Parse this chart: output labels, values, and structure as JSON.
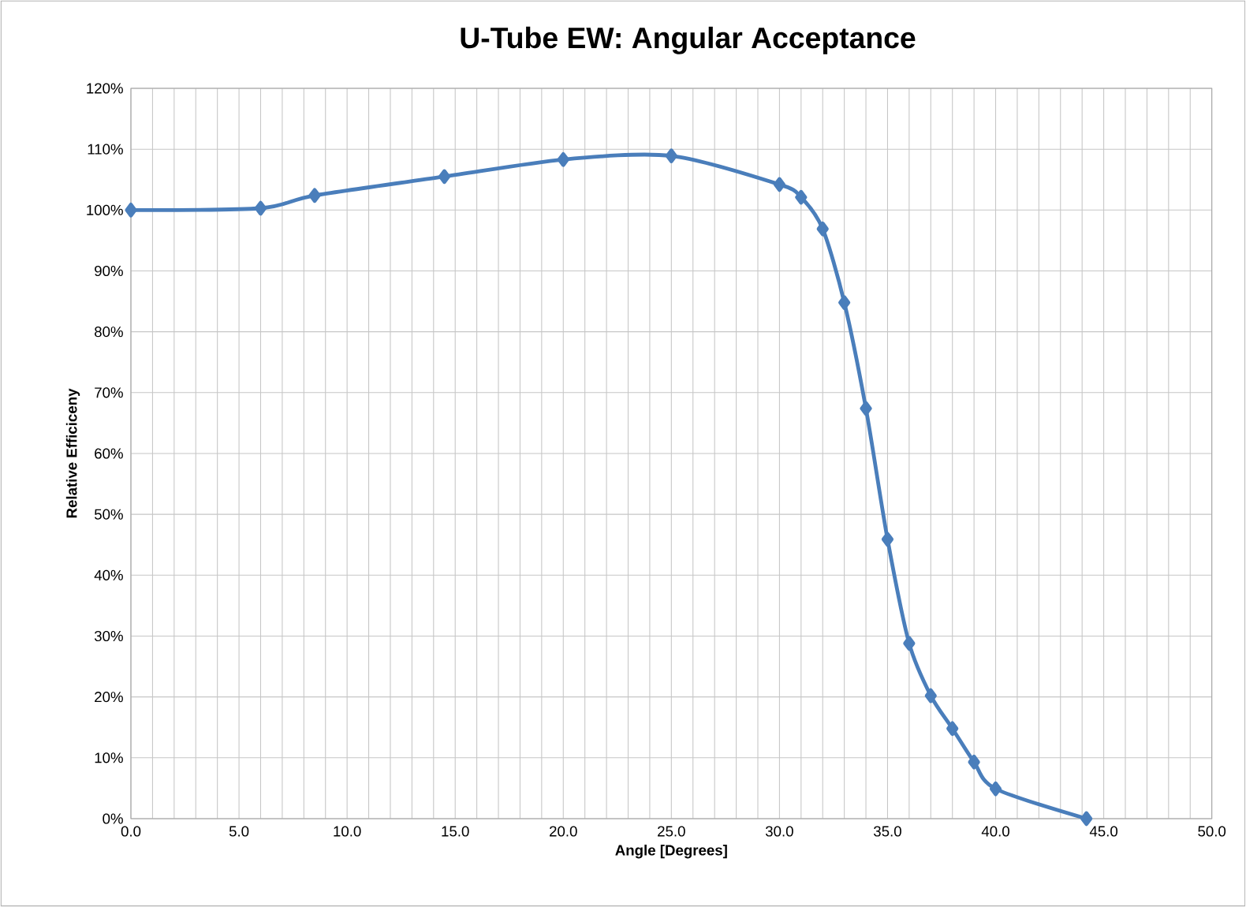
{
  "chart_data": {
    "type": "line",
    "title": "U-Tube EW: Angular Acceptance",
    "xlabel": "Angle [Degrees]",
    "ylabel": "Relative Efficiceny",
    "x": [
      0,
      6,
      8.5,
      14.5,
      20,
      25,
      30,
      31,
      32,
      33,
      34,
      35,
      36,
      37,
      38,
      39,
      40,
      44.2
    ],
    "series": [
      {
        "color": "#4a7ebb",
        "values": [
          100,
          100.3,
          102.4,
          105.5,
          108.3,
          108.9,
          104.2,
          102.1,
          96.9,
          84.8,
          67.4,
          45.9,
          28.8,
          20.2,
          14.8,
          9.3,
          4.9,
          0
        ]
      }
    ],
    "xlim": [
      0,
      50
    ],
    "ylim": [
      0,
      120
    ],
    "xticks": [
      {
        "value": 0,
        "label": "0.0"
      },
      {
        "value": 5,
        "label": "5.0"
      },
      {
        "value": 10,
        "label": "10.0"
      },
      {
        "value": 15,
        "label": "15.0"
      },
      {
        "value": 20,
        "label": "20.0"
      },
      {
        "value": 25,
        "label": "25.0"
      },
      {
        "value": 30,
        "label": "30.0"
      },
      {
        "value": 35,
        "label": "35.0"
      },
      {
        "value": 40,
        "label": "40.0"
      },
      {
        "value": 45,
        "label": "45.0"
      },
      {
        "value": 50,
        "label": "50.0"
      }
    ],
    "yticks": [
      {
        "value": 0,
        "label": "0%"
      },
      {
        "value": 10,
        "label": "10%"
      },
      {
        "value": 20,
        "label": "20%"
      },
      {
        "value": 30,
        "label": "30%"
      },
      {
        "value": 40,
        "label": "40%"
      },
      {
        "value": 50,
        "label": "50%"
      },
      {
        "value": 60,
        "label": "60%"
      },
      {
        "value": 70,
        "label": "70%"
      },
      {
        "value": 80,
        "label": "80%"
      },
      {
        "value": 90,
        "label": "90%"
      },
      {
        "value": 100,
        "label": "100%"
      },
      {
        "value": 110,
        "label": "110%"
      },
      {
        "value": 120,
        "label": "120%"
      }
    ],
    "grid": true,
    "marker": "diamond",
    "line_style": "solid"
  }
}
